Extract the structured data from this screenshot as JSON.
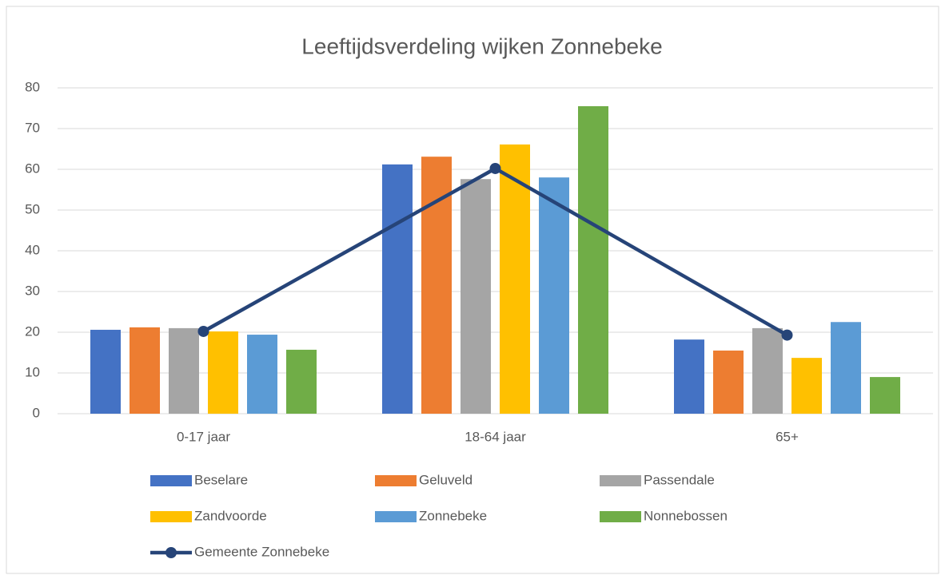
{
  "chart_data": {
    "type": "bar",
    "title": "Leeftijdsverdeling wijken Zonnebeke",
    "categories": [
      "0-17 jaar",
      "18-64 jaar",
      "65+"
    ],
    "series": [
      {
        "name": "Beselare",
        "color": "#4472c4",
        "values": [
          20.6,
          61.2,
          18.2
        ]
      },
      {
        "name": "Geluveld",
        "color": "#ed7d31",
        "values": [
          21.2,
          63.1,
          15.5
        ]
      },
      {
        "name": "Passendale",
        "color": "#a5a5a5",
        "values": [
          21,
          57.6,
          21
        ]
      },
      {
        "name": "Zandvoorde",
        "color": "#ffc000",
        "values": [
          20.2,
          66.1,
          13.7
        ]
      },
      {
        "name": "Zonnebeke",
        "color": "#5b9bd5",
        "values": [
          19.4,
          58,
          22.5
        ]
      },
      {
        "name": "Nonnebossen",
        "color": "#70ad47",
        "values": [
          15.7,
          75.5,
          9
        ]
      },
      {
        "name": "Gemeente Zonnebeke",
        "color": "#264478",
        "type": "line",
        "values": [
          20.2,
          60.2,
          19.3
        ]
      }
    ],
    "ylim": [
      0,
      80
    ],
    "yticks": [
      0,
      10,
      20,
      30,
      40,
      50,
      60,
      70,
      80
    ],
    "grid": true,
    "legend": "bottom"
  }
}
